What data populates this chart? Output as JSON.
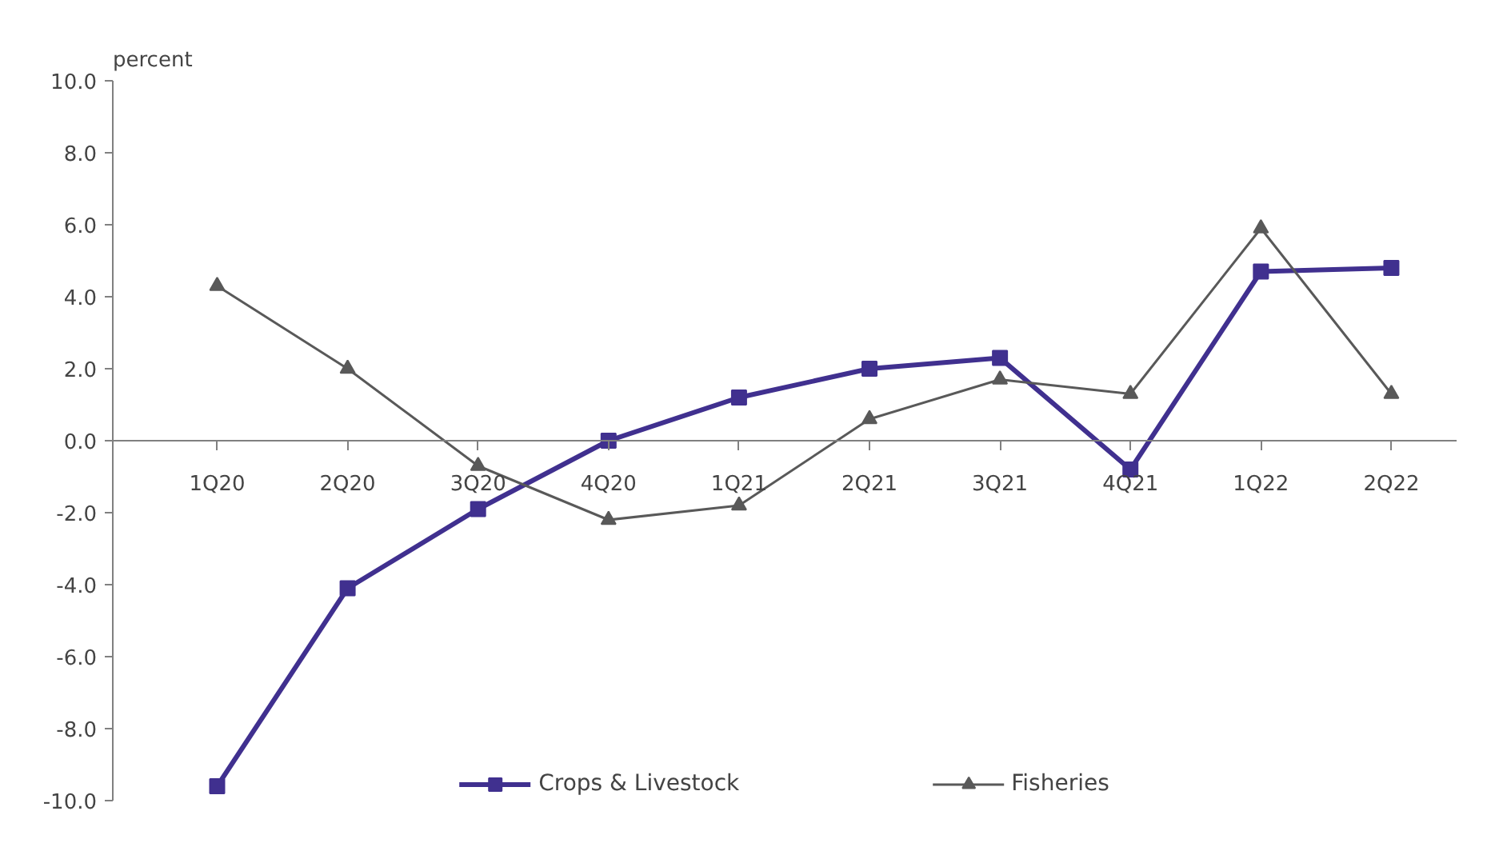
{
  "chart_data": {
    "type": "line",
    "ylabel": "percent",
    "categories": [
      "1Q20",
      "2Q20",
      "3Q20",
      "4Q20",
      "1Q21",
      "2Q21",
      "3Q21",
      "4Q21",
      "1Q22",
      "2Q22"
    ],
    "series": [
      {
        "name": "Crops & Livestock",
        "color": "#40308f",
        "marker": "square",
        "values": [
          -9.6,
          -4.1,
          -1.9,
          0.0,
          1.2,
          2.0,
          2.3,
          -0.8,
          4.7,
          4.8
        ]
      },
      {
        "name": "Fisheries",
        "color": "#595959",
        "marker": "triangle",
        "values": [
          4.3,
          2.0,
          -0.7,
          -2.2,
          -1.8,
          0.6,
          1.7,
          1.3,
          5.9,
          1.3
        ]
      }
    ],
    "ylim": [
      -10,
      10
    ],
    "yticks": [
      {
        "value": -10,
        "label": "-10.0"
      },
      {
        "value": -8,
        "label": "-8.0"
      },
      {
        "value": -6,
        "label": "-6.0"
      },
      {
        "value": -4,
        "label": "-4.0"
      },
      {
        "value": -2,
        "label": "-2.0"
      },
      {
        "value": 0,
        "label": "0.0"
      },
      {
        "value": 2,
        "label": "2.0"
      },
      {
        "value": 4,
        "label": "4.0"
      },
      {
        "value": 6,
        "label": "6.0"
      },
      {
        "value": 8,
        "label": "8.0"
      },
      {
        "value": 10,
        "label": "10.0"
      }
    ],
    "grid": false,
    "legend": "bottom"
  }
}
